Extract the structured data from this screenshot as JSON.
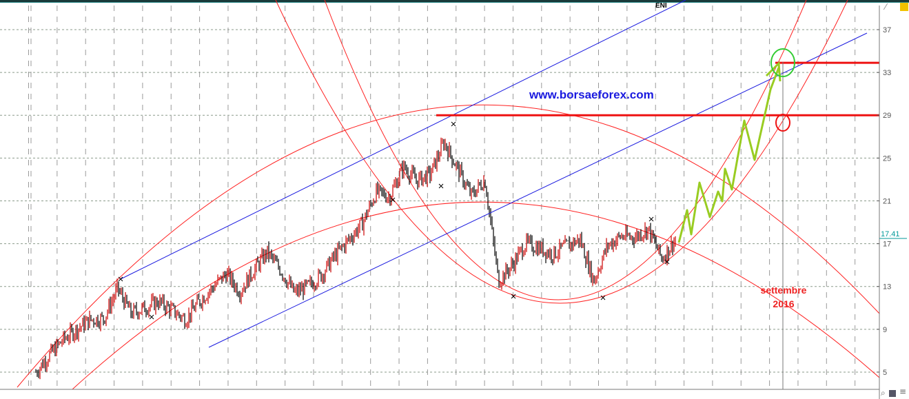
{
  "symbol": "ENI",
  "watermark": "www.borsaeforex.com",
  "annotation": {
    "line1": "settembre",
    "line2": "2016"
  },
  "colors": {
    "up": "#cc0000",
    "down": "#000000",
    "channel": "#1a1adf",
    "arcs": "#ff2020",
    "projection": "#99cc22",
    "level": "#ee1111",
    "target_circle": "#33cc33"
  },
  "chart_data": {
    "type": "line",
    "title": "ENI",
    "xlabel": "",
    "ylabel": "",
    "ylim": [
      3.5,
      38.5
    ],
    "y_ticks": [
      "37",
      "33",
      "29",
      "25",
      "21",
      "17",
      "13",
      "9",
      "5"
    ],
    "y_tick_values": [
      37,
      33,
      29,
      25,
      21,
      17,
      13,
      9,
      5
    ],
    "grid": true,
    "last_price": "17.41",
    "series": [
      {
        "values": [
          5.0,
          6.6,
          8.0,
          9.0,
          9.9,
          10.0,
          12.8,
          10.5,
          11.0,
          11.6,
          10.8,
          9.9,
          11.6,
          12.9,
          14.2,
          12.5,
          14.5,
          16.2,
          14.5,
          12.4,
          13.0,
          14.1,
          15.9,
          17.4,
          18.9,
          21.8,
          21.4,
          24.2,
          22.9,
          23.5,
          26.5,
          24.0,
          21.5,
          23.0,
          13.5,
          15.0,
          17.0,
          16.6,
          16.0,
          16.8,
          17.4,
          13.5,
          16.8,
          17.7,
          17.6,
          18.4,
          15.6,
          17.41
        ]
      }
    ],
    "horizontal_levels": [
      29,
      33.9
    ],
    "projection": "zigzag up to ~34"
  }
}
